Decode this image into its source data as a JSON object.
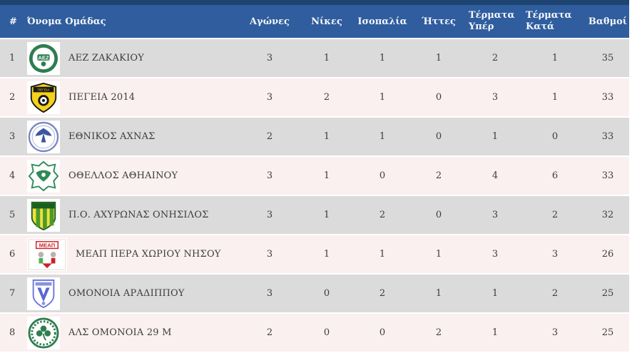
{
  "table": {
    "columns": [
      {
        "key": "pos",
        "label": "#"
      },
      {
        "key": "team",
        "label": "Όνομα Ομάδας"
      },
      {
        "key": "games",
        "label": "Αγώνες"
      },
      {
        "key": "wins",
        "label": "Νίκες"
      },
      {
        "key": "draws",
        "label": "Ισοπαλία"
      },
      {
        "key": "losses",
        "label": "Ήττες"
      },
      {
        "key": "goals_for",
        "label": "Τέρματα Υπέρ"
      },
      {
        "key": "goals_against",
        "label": "Τέρματα Κατά"
      },
      {
        "key": "points",
        "label": "Βαθμοί"
      }
    ],
    "rows": [
      {
        "pos": "1",
        "team": "ΑΕΖ ΖΑΚΑΚΙΟΥ",
        "logo": "aez-zakakiou-crest",
        "games": "3",
        "wins": "1",
        "draws": "1",
        "losses": "1",
        "goals_for": "2",
        "goals_against": "1",
        "points": "35"
      },
      {
        "pos": "2",
        "team": "ΠΕΓΕΙΑ 2014",
        "logo": "pegeia-2014-crest",
        "games": "3",
        "wins": "2",
        "draws": "1",
        "losses": "0",
        "goals_for": "3",
        "goals_against": "1",
        "points": "33"
      },
      {
        "pos": "3",
        "team": "ΕΘΝΙΚΟΣ ΑΧΝΑΣ",
        "logo": "ethnikos-achnas-crest",
        "games": "2",
        "wins": "1",
        "draws": "1",
        "losses": "0",
        "goals_for": "1",
        "goals_against": "0",
        "points": "33"
      },
      {
        "pos": "4",
        "team": "ΟΘΕΛΛΟΣ ΑΘΗΑΙΝΟΥ",
        "logo": "othellos-athienou-crest",
        "games": "3",
        "wins": "1",
        "draws": "0",
        "losses": "2",
        "goals_for": "4",
        "goals_against": "6",
        "points": "33"
      },
      {
        "pos": "5",
        "team": "Π.Ο. ΑΧΥΡΩΝΑΣ ΟΝΗΣΙΛΟΣ",
        "logo": "achyronas-onisilos-crest",
        "games": "3",
        "wins": "1",
        "draws": "2",
        "losses": "0",
        "goals_for": "3",
        "goals_against": "2",
        "points": "32"
      },
      {
        "pos": "6",
        "team": "ΜΕΑΠ ΠΕΡΑ ΧΩΡΙΟΥ ΝΗΣΟΥ",
        "logo": "meap-pera-choriou-crest",
        "games": "3",
        "wins": "1",
        "draws": "1",
        "losses": "1",
        "goals_for": "3",
        "goals_against": "3",
        "points": "26"
      },
      {
        "pos": "7",
        "team": "ΟΜΟΝΟΙΑ ΑΡΑΔΙΠΠΟΥ",
        "logo": "omonoia-aradippou-crest",
        "games": "3",
        "wins": "0",
        "draws": "2",
        "losses": "1",
        "goals_for": "1",
        "goals_against": "2",
        "points": "25"
      },
      {
        "pos": "8",
        "team": "ΑΛΣ ΟΜΟΝΟΙΑ 29 Μ",
        "logo": "als-omonoia-29m-crest",
        "games": "2",
        "wins": "0",
        "draws": "0",
        "losses": "2",
        "goals_for": "1",
        "goals_against": "3",
        "points": "25"
      }
    ]
  },
  "colors": {
    "header_bg": "#2f5d9e",
    "header_top_strip": "#1e4472",
    "header_text": "#f4f6fa",
    "row_odd_bg": "#dbdbdb",
    "row_even_bg": "#faf0ef",
    "row_text": "#3c3c3c",
    "row_separator": "#ffffff"
  }
}
